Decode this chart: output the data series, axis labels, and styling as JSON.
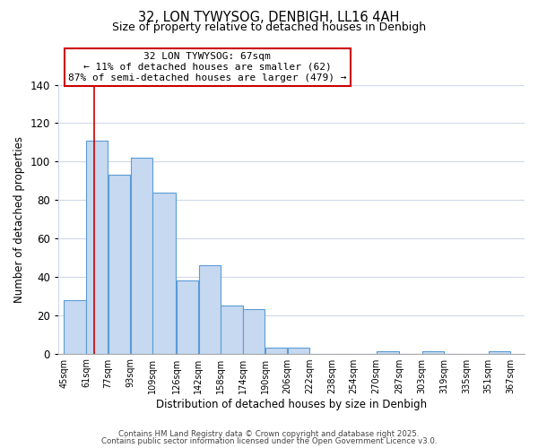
{
  "title": "32, LON TYWYSOG, DENBIGH, LL16 4AH",
  "subtitle": "Size of property relative to detached houses in Denbigh",
  "xlabel": "Distribution of detached houses by size in Denbigh",
  "ylabel": "Number of detached properties",
  "bar_left_edges": [
    45,
    61,
    77,
    93,
    109,
    126,
    142,
    158,
    174,
    190,
    206,
    222,
    238,
    254,
    270,
    287,
    303,
    319,
    335,
    351
  ],
  "bar_widths": [
    16,
    16,
    16,
    16,
    17,
    16,
    16,
    16,
    16,
    16,
    16,
    16,
    16,
    16,
    17,
    16,
    16,
    16,
    16,
    16
  ],
  "bar_heights": [
    28,
    111,
    93,
    102,
    84,
    38,
    46,
    25,
    23,
    3,
    3,
    0,
    0,
    0,
    1,
    0,
    1,
    0,
    0,
    1
  ],
  "tick_labels": [
    "45sqm",
    "61sqm",
    "77sqm",
    "93sqm",
    "109sqm",
    "126sqm",
    "142sqm",
    "158sqm",
    "174sqm",
    "190sqm",
    "206sqm",
    "222sqm",
    "238sqm",
    "254sqm",
    "270sqm",
    "287sqm",
    "303sqm",
    "319sqm",
    "335sqm",
    "351sqm",
    "367sqm"
  ],
  "tick_positions": [
    45,
    61,
    77,
    93,
    109,
    126,
    142,
    158,
    174,
    190,
    206,
    222,
    238,
    254,
    270,
    287,
    303,
    319,
    335,
    351,
    367
  ],
  "bar_color": "#c6d9f0",
  "bar_edge_color": "#5a9bd5",
  "marker_x": 67,
  "marker_color": "#cc0000",
  "ylim": [
    0,
    140
  ],
  "xlim_left": 41,
  "xlim_right": 377,
  "annotation_title": "32 LON TYWYSOG: 67sqm",
  "annotation_line1": "← 11% of detached houses are smaller (62)",
  "annotation_line2": "87% of semi-detached houses are larger (479) →",
  "footer1": "Contains HM Land Registry data © Crown copyright and database right 2025.",
  "footer2": "Contains public sector information licensed under the Open Government Licence v3.0.",
  "background_color": "#ffffff",
  "grid_color": "#d0d8e8"
}
